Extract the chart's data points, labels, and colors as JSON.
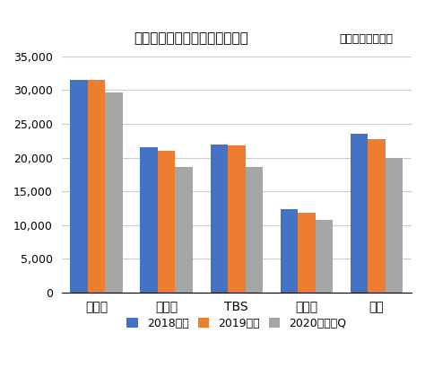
{
  "title": "タイム収入・年度別四半期平均",
  "subtitle": "（単位：百万円）",
  "categories": [
    "日テレ",
    "テレ朝",
    "TBS",
    "テレ東",
    "フジ"
  ],
  "series": [
    {
      "label": "2018年度",
      "color": "#4472C4",
      "values": [
        31500,
        21600,
        21900,
        12400,
        23500
      ]
    },
    {
      "label": "2019年度",
      "color": "#ED7D31",
      "values": [
        31500,
        21000,
        21800,
        11800,
        22800
      ]
    },
    {
      "label": "2020年度３Q",
      "color": "#A6A6A6",
      "values": [
        29700,
        18600,
        18600,
        10800,
        20000
      ]
    }
  ],
  "ylim": [
    0,
    35000
  ],
  "yticks": [
    0,
    5000,
    10000,
    15000,
    20000,
    25000,
    30000,
    35000
  ],
  "bar_width": 0.25,
  "background_color": "#FFFFFF",
  "grid_color": "#CCCCCC",
  "title_fontsize": 11,
  "subtitle_fontsize": 9,
  "tick_fontsize": 9,
  "legend_fontsize": 9
}
